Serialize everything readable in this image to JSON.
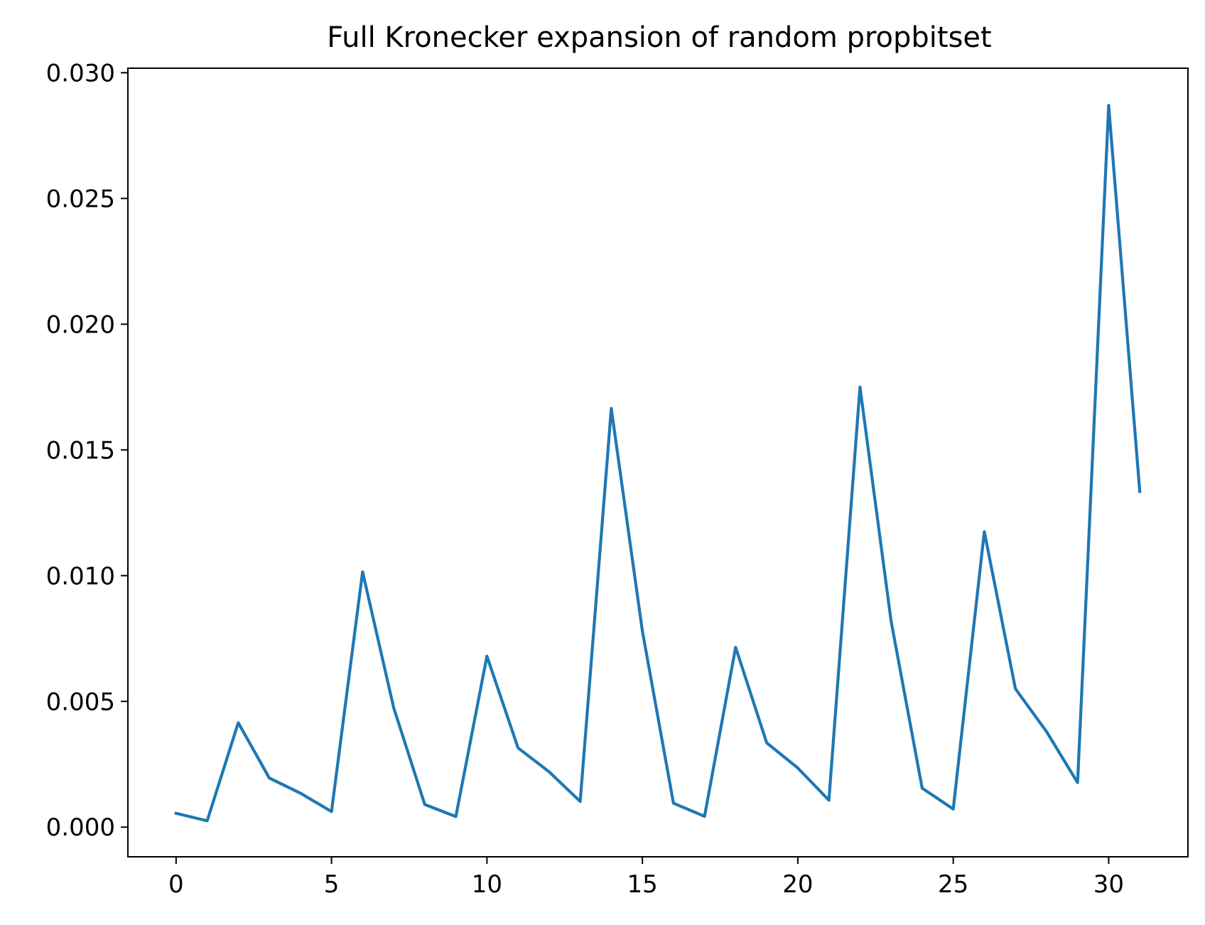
{
  "chart_data": {
    "type": "line",
    "title": "Full Kronecker expansion of random propbitset",
    "xlabel": "",
    "ylabel": "",
    "x": [
      0,
      1,
      2,
      3,
      4,
      5,
      6,
      7,
      8,
      9,
      10,
      11,
      12,
      13,
      14,
      15,
      16,
      17,
      18,
      19,
      20,
      21,
      22,
      23,
      24,
      25,
      26,
      27,
      28,
      29,
      30,
      31
    ],
    "series": [
      {
        "color": "#1f77b4",
        "values": [
          0.00055,
          0.00025,
          0.00415,
          0.00195,
          0.00135,
          0.00062,
          0.01015,
          0.00475,
          0.0009,
          0.00042,
          0.0068,
          0.00315,
          0.0022,
          0.00102,
          0.01665,
          0.0078,
          0.00095,
          0.00043,
          0.00715,
          0.00335,
          0.00235,
          0.00107,
          0.0175,
          0.0082,
          0.00155,
          0.00072,
          0.01175,
          0.0055,
          0.0038,
          0.00177,
          0.0287,
          0.01335
        ]
      }
    ],
    "xlim": [
      -1.55,
      32.55
    ],
    "ylim": [
      -0.00118,
      0.03018
    ],
    "xticks": [
      0,
      5,
      10,
      15,
      20,
      25,
      30
    ],
    "xtick_labels": [
      "0",
      "5",
      "10",
      "15",
      "20",
      "25",
      "30"
    ],
    "yticks": [
      0.0,
      0.005,
      0.01,
      0.015,
      0.02,
      0.025,
      0.03
    ],
    "ytick_labels": [
      "0.000",
      "0.005",
      "0.010",
      "0.015",
      "0.020",
      "0.025",
      "0.030"
    ],
    "grid": false,
    "legend": false
  }
}
